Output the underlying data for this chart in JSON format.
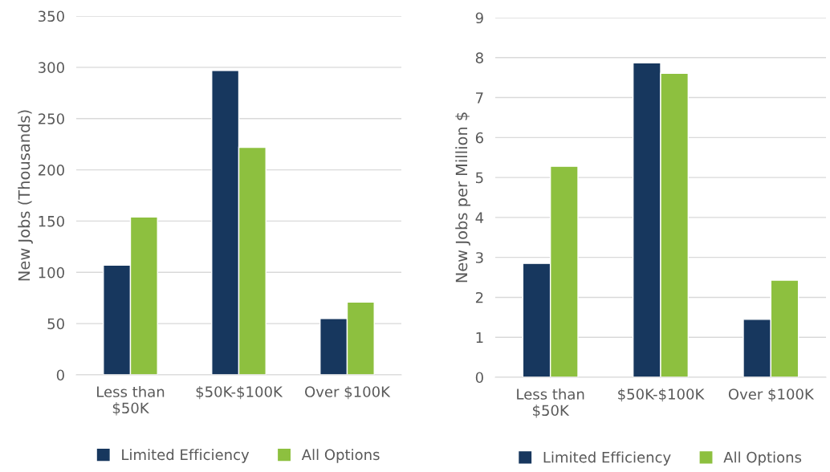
{
  "chart_data": [
    {
      "type": "bar",
      "ylabel": "New Jobs (Thousands)",
      "categories": [
        "Less than\n$50K",
        "$50K-$100K",
        "Over $100K"
      ],
      "series": [
        {
          "name": "Limited Efficiency",
          "color": "#17375e",
          "values": [
            107,
            297,
            55
          ]
        },
        {
          "name": "All Options",
          "color": "#8dc03f",
          "values": [
            154,
            222,
            71
          ]
        }
      ],
      "ylim": [
        0,
        350
      ],
      "yticks": [
        0,
        50,
        100,
        150,
        200,
        250,
        300,
        350
      ],
      "grid": "y",
      "legend": "bottom"
    },
    {
      "type": "bar",
      "ylabel": "New Jobs per Million $",
      "categories": [
        "Less than\n$50K",
        "$50K-$100K",
        "Over $100K"
      ],
      "series": [
        {
          "name": "Limited Efficiency",
          "color": "#17375e",
          "values": [
            2.85,
            7.87,
            1.45
          ]
        },
        {
          "name": "All Options",
          "color": "#8dc03f",
          "values": [
            5.28,
            7.61,
            2.43
          ]
        }
      ],
      "ylim": [
        0,
        9
      ],
      "yticks": [
        0,
        1,
        2,
        3,
        4,
        5,
        6,
        7,
        8,
        9
      ],
      "grid": "y",
      "legend": "bottom"
    }
  ]
}
